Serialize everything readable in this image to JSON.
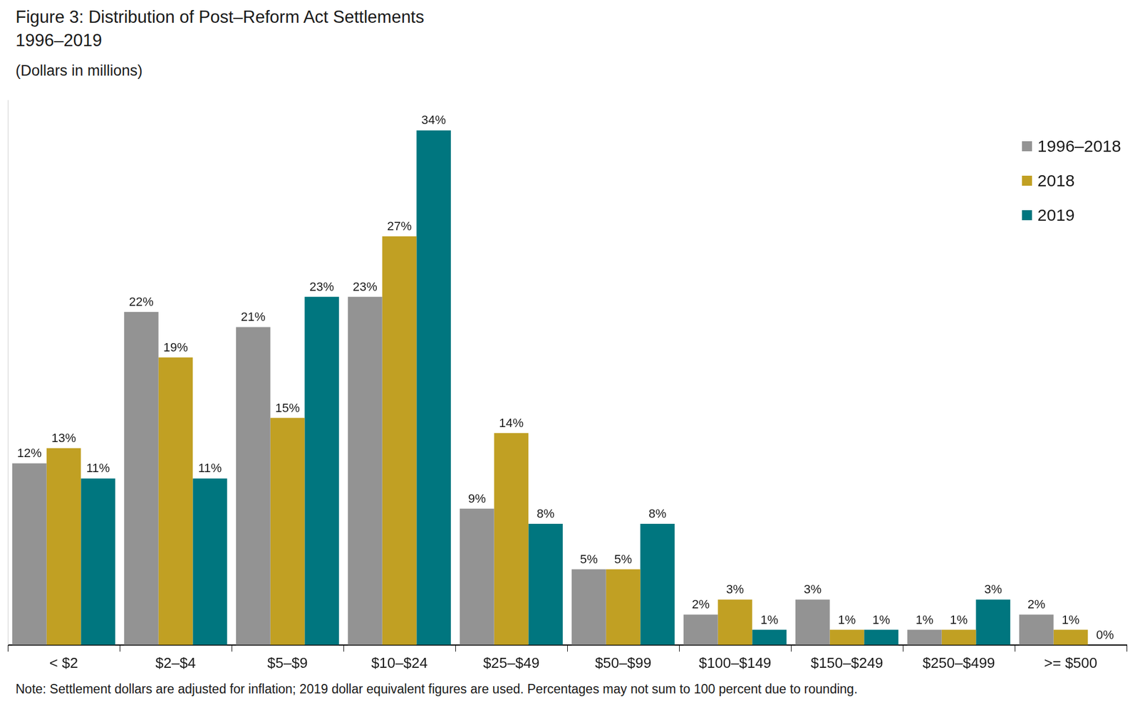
{
  "chart_data": {
    "type": "bar",
    "title": "Figure 3: Distribution of Post–Reform Act Settlements\n1996–2019",
    "subtitle": "(Dollars in millions)",
    "note": "Note: Settlement dollars are adjusted for inflation; 2019 dollar equivalent figures are used. Percentages may not sum to 100 percent due to rounding.",
    "categories": [
      "< $2",
      "$2–$4",
      "$5–$9",
      "$10–$24",
      "$25–$49",
      "$50–$99",
      "$100–$149",
      "$150–$249",
      "$250–$499",
      ">= $500"
    ],
    "series": [
      {
        "name": "1996–2018",
        "color": "#939393",
        "values": [
          12,
          22,
          21,
          23,
          9,
          5,
          2,
          3,
          1,
          2
        ],
        "value_labels": [
          "12%",
          "22%",
          "21%",
          "23%",
          "9%",
          "5%",
          "2%",
          "3%",
          "1%",
          "2%"
        ]
      },
      {
        "name": "2018",
        "color": "#c1a023",
        "values": [
          13,
          19,
          15,
          27,
          14,
          5,
          3,
          1,
          1,
          1
        ],
        "value_labels": [
          "13%",
          "19%",
          "15%",
          "27%",
          "14%",
          "5%",
          "3%",
          "1%",
          "1%",
          "1%"
        ]
      },
      {
        "name": "2019",
        "color": "#00767f",
        "values": [
          11,
          11,
          23,
          34,
          8,
          8,
          1,
          1,
          3,
          0
        ],
        "value_labels": [
          "11%",
          "11%",
          "23%",
          "34%",
          "8%",
          "8%",
          "1%",
          "1%",
          "3%",
          "0%"
        ]
      }
    ],
    "ylim": [
      0,
      36
    ],
    "grid": false,
    "legend": "top right",
    "data_labels": true,
    "tick_labels": "x"
  }
}
